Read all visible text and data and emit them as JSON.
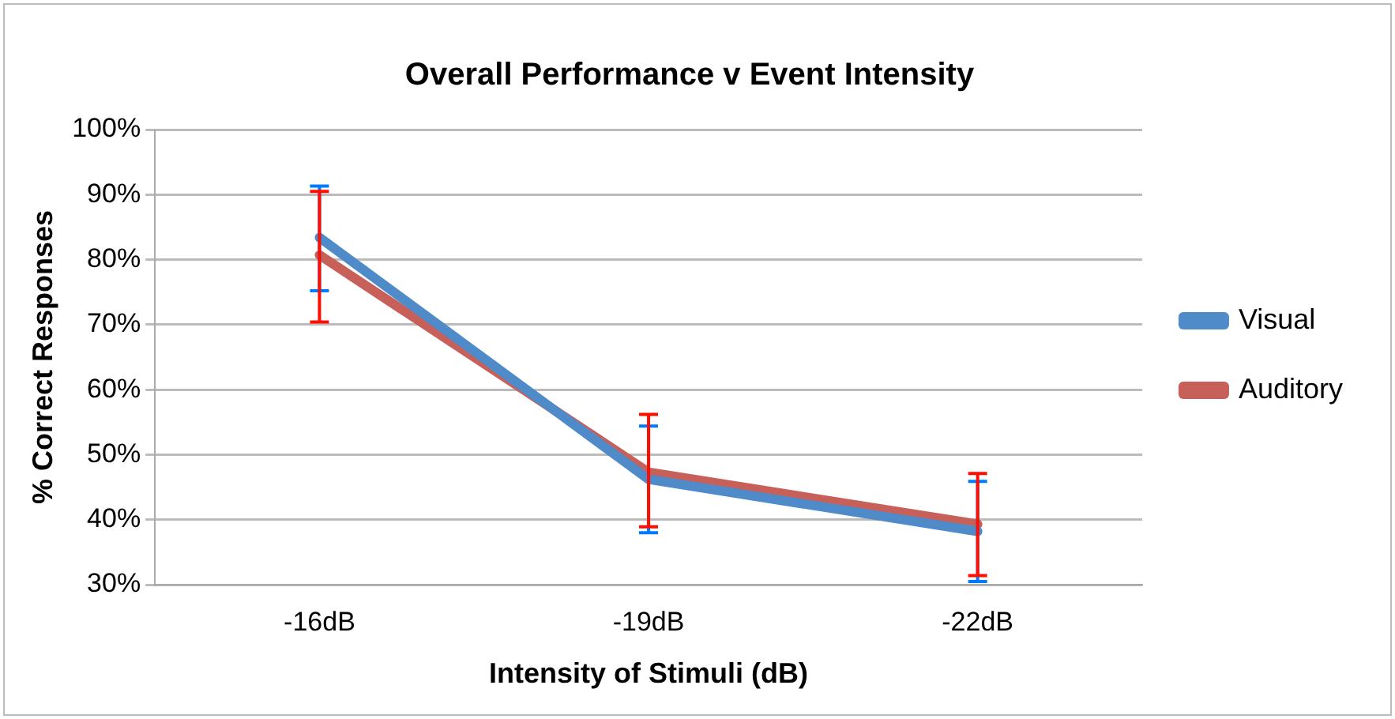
{
  "chart_data": {
    "type": "line",
    "title": "Overall Performance v Event Intensity",
    "xlabel": "Intensity of Stimuli (dB)",
    "ylabel": "% Correct Responses",
    "categories": [
      "-16dB",
      "-19dB",
      "-22dB"
    ],
    "series": [
      {
        "name": "Visual",
        "color": "#4f8ac9",
        "values": [
          83.4,
          46.2,
          38.2
        ],
        "errors": [
          [
            75.2,
            91.3
          ],
          [
            38.0,
            54.4
          ],
          [
            30.5,
            45.9
          ]
        ]
      },
      {
        "name": "Auditory",
        "color": "#c8605a",
        "values": [
          80.7,
          47.3,
          39.3
        ],
        "errors": [
          [
            70.4,
            90.5
          ],
          [
            38.9,
            56.2
          ],
          [
            31.4,
            47.1
          ]
        ]
      }
    ],
    "ylim": [
      30,
      100
    ],
    "yticks": [
      {
        "value": 30,
        "label": "30%"
      },
      {
        "value": 40,
        "label": "40%"
      },
      {
        "value": 50,
        "label": "50%"
      },
      {
        "value": 60,
        "label": "60%"
      },
      {
        "value": 70,
        "label": "70%"
      },
      {
        "value": 80,
        "label": "80%"
      },
      {
        "value": 90,
        "label": "90%"
      },
      {
        "value": 100,
        "label": "100%"
      }
    ],
    "grid": "y",
    "legend": "right",
    "marker": "none",
    "line_style": "solid"
  }
}
